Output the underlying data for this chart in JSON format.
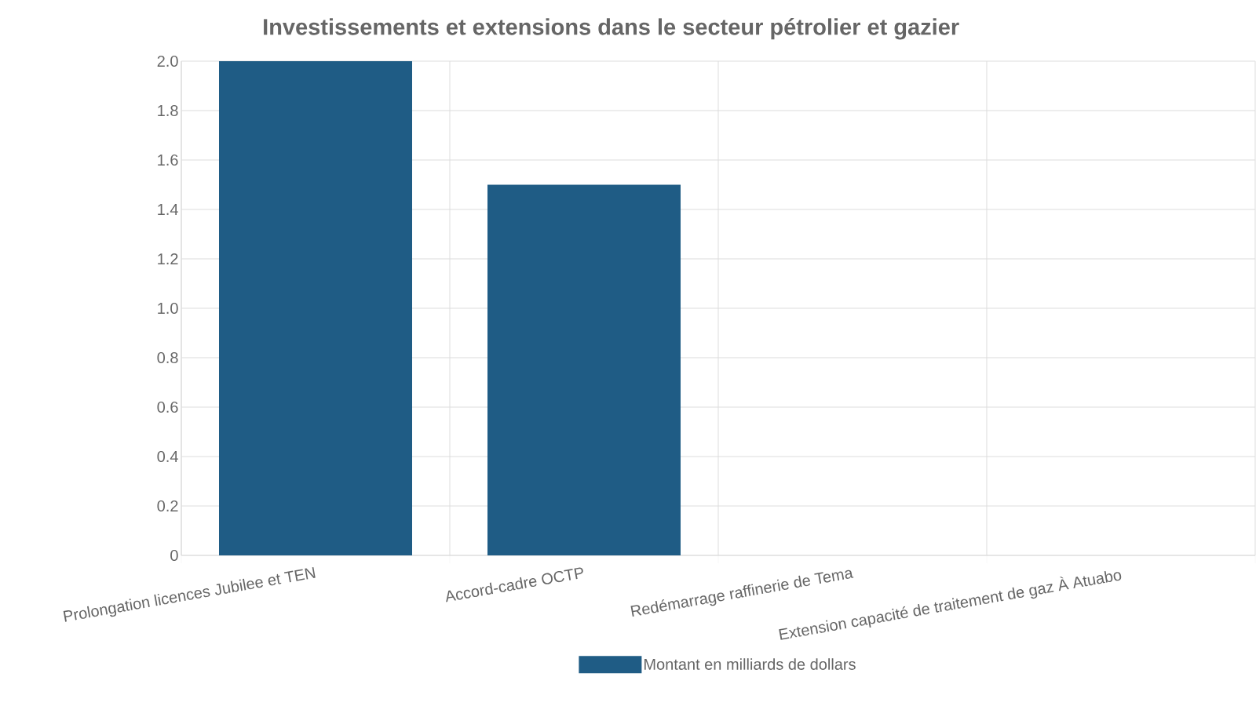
{
  "chart_data": {
    "type": "bar",
    "title": "Investissements et extensions dans le secteur pétrolier et gazier",
    "categories": [
      "Prolongation licences Jubilee et TEN",
      "Accord-cadre OCTP",
      "Redémarrage raffinerie de Tema",
      "Extension capacité de traitement de gaz À Atuabo"
    ],
    "series": [
      {
        "name": "Montant en milliards de dollars",
        "color": "#1f5c85",
        "values": [
          2.0,
          1.5,
          null,
          null
        ]
      }
    ],
    "ylim": [
      0,
      2.0
    ],
    "yticks": [
      0,
      {
        "value": 0.2,
        "label": "0.2"
      },
      {
        "value": 0.4,
        "label": "0.4"
      },
      {
        "value": 0.6,
        "label": "0.6"
      },
      {
        "value": 0.8,
        "label": "0.8"
      },
      {
        "value": 1.0,
        "label": "1.0"
      },
      {
        "value": 1.2,
        "label": "1.2"
      },
      {
        "value": 1.4,
        "label": "1.4"
      },
      {
        "value": 1.6,
        "label": "1.6"
      },
      {
        "value": 1.8,
        "label": "1.8"
      },
      {
        "value": 2.0,
        "label": "2.0"
      }
    ],
    "grid": true,
    "legend": "bottom"
  }
}
